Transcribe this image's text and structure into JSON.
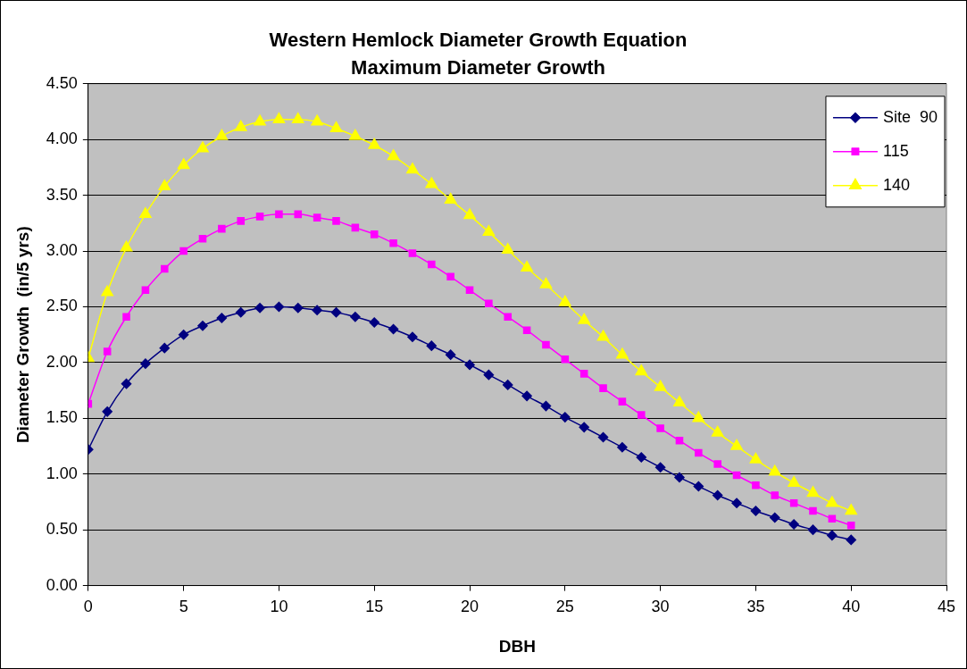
{
  "chart_data": {
    "type": "line",
    "title": "Western Hemlock Diameter Growth Equation",
    "subtitle": "Maximum Diameter Growth",
    "xlabel": "DBH",
    "ylabel": "Diameter Growth  (in/5 yrs)",
    "x": [
      0,
      1,
      2,
      3,
      4,
      5,
      6,
      7,
      8,
      9,
      10,
      11,
      12,
      13,
      14,
      15,
      16,
      17,
      18,
      19,
      20,
      21,
      22,
      23,
      24,
      25,
      26,
      27,
      28,
      29,
      30,
      31,
      32,
      33,
      34,
      35,
      36,
      37,
      38,
      39,
      40
    ],
    "series": [
      {
        "name": "Site  90",
        "color": "#000080",
        "marker": "diamond",
        "values": [
          1.22,
          1.56,
          1.81,
          1.99,
          2.13,
          2.25,
          2.33,
          2.4,
          2.45,
          2.49,
          2.5,
          2.49,
          2.47,
          2.45,
          2.41,
          2.36,
          2.3,
          2.23,
          2.15,
          2.07,
          1.98,
          1.89,
          1.8,
          1.7,
          1.61,
          1.51,
          1.42,
          1.33,
          1.24,
          1.15,
          1.06,
          0.97,
          0.89,
          0.81,
          0.74,
          0.67,
          0.61,
          0.55,
          0.5,
          0.45,
          0.41
        ]
      },
      {
        "name": "115",
        "color": "#ff00ff",
        "marker": "square",
        "values": [
          1.63,
          2.1,
          2.41,
          2.65,
          2.84,
          3.0,
          3.11,
          3.2,
          3.27,
          3.31,
          3.33,
          3.33,
          3.3,
          3.27,
          3.21,
          3.15,
          3.07,
          2.98,
          2.88,
          2.77,
          2.65,
          2.53,
          2.41,
          2.29,
          2.16,
          2.03,
          1.9,
          1.77,
          1.65,
          1.53,
          1.41,
          1.3,
          1.19,
          1.09,
          0.99,
          0.9,
          0.81,
          0.74,
          0.67,
          0.6,
          0.54
        ]
      },
      {
        "name": "140",
        "color": "#ffff00",
        "marker": "triangle",
        "values": [
          2.04,
          2.63,
          3.03,
          3.33,
          3.58,
          3.77,
          3.92,
          4.03,
          4.11,
          4.16,
          4.18,
          4.18,
          4.16,
          4.1,
          4.03,
          3.95,
          3.85,
          3.73,
          3.6,
          3.46,
          3.32,
          3.17,
          3.01,
          2.85,
          2.7,
          2.54,
          2.38,
          2.23,
          2.07,
          1.92,
          1.78,
          1.64,
          1.5,
          1.37,
          1.25,
          1.13,
          1.02,
          0.92,
          0.83,
          0.74,
          0.67
        ]
      }
    ],
    "xlim": [
      0,
      45
    ],
    "xticks": [
      0,
      5,
      10,
      15,
      20,
      25,
      30,
      35,
      40,
      45
    ],
    "ylim": [
      0,
      4.5
    ],
    "yticks": [
      {
        "value": 0,
        "label": "0.00"
      },
      {
        "value": 0.5,
        "label": "0.50"
      },
      {
        "value": 1,
        "label": "1.00"
      },
      {
        "value": 1.5,
        "label": "1.50"
      },
      {
        "value": 2,
        "label": "2.00"
      },
      {
        "value": 2.5,
        "label": "2.50"
      },
      {
        "value": 3,
        "label": "3.00"
      },
      {
        "value": 3.5,
        "label": "3.50"
      },
      {
        "value": 4,
        "label": "4.00"
      },
      {
        "value": 4.5,
        "label": "4.50"
      }
    ],
    "grid": "y",
    "legend": "top right",
    "line_style": "solid"
  }
}
